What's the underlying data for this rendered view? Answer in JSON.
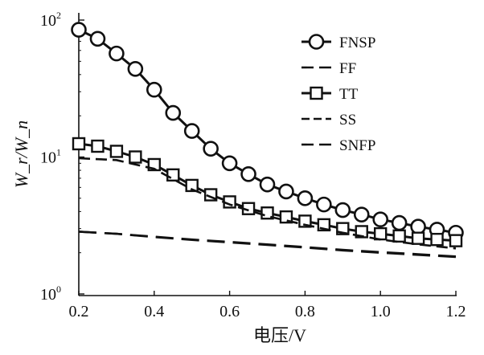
{
  "chart_data": {
    "type": "line",
    "title": "",
    "xlabel": "电压/V",
    "ylabel": "W_r/W_n",
    "x_ticks": [
      "0.2",
      "0.4",
      "0.6",
      "0.8",
      "1.0",
      "1.2"
    ],
    "y_ticks": [
      {
        "base": "10",
        "exp": "0"
      },
      {
        "base": "10",
        "exp": "1"
      },
      {
        "base": "10",
        "exp": "2"
      }
    ],
    "xlim": [
      0.18,
      1.2
    ],
    "ylim": [
      1,
      100
    ],
    "y_scale": "log",
    "grid": false,
    "legend_position": "top-right",
    "series": [
      {
        "name": "FNSP",
        "marker": "circle",
        "dash": "solid",
        "x": [
          0.2,
          0.25,
          0.3,
          0.35,
          0.4,
          0.45,
          0.5,
          0.55,
          0.6,
          0.65,
          0.7,
          0.75,
          0.8,
          0.85,
          0.9,
          0.95,
          1.0,
          1.05,
          1.1,
          1.15,
          1.2
        ],
        "y": [
          85,
          73,
          57,
          44,
          31,
          21,
          15.5,
          11.5,
          9.0,
          7.5,
          6.3,
          5.6,
          5.0,
          4.5,
          4.1,
          3.8,
          3.5,
          3.3,
          3.1,
          2.95,
          2.8
        ]
      },
      {
        "name": "FF",
        "marker": "none",
        "dash": "long-dash",
        "x": [
          0.2,
          0.3,
          0.4,
          0.5,
          0.6,
          0.7,
          0.8,
          0.9,
          1.0,
          1.1,
          1.2
        ],
        "y": [
          2.85,
          2.75,
          2.62,
          2.5,
          2.4,
          2.3,
          2.2,
          2.1,
          2.02,
          1.95,
          1.88
        ]
      },
      {
        "name": "TT",
        "marker": "square",
        "dash": "solid",
        "x": [
          0.2,
          0.25,
          0.3,
          0.35,
          0.4,
          0.45,
          0.5,
          0.55,
          0.6,
          0.65,
          0.7,
          0.75,
          0.8,
          0.85,
          0.9,
          0.95,
          1.0,
          1.05,
          1.1,
          1.15,
          1.2
        ],
        "y": [
          12.5,
          12.0,
          11.0,
          10.0,
          8.8,
          7.4,
          6.2,
          5.3,
          4.7,
          4.2,
          3.9,
          3.65,
          3.4,
          3.2,
          3.0,
          2.85,
          2.75,
          2.65,
          2.55,
          2.5,
          2.45
        ]
      },
      {
        "name": "SS",
        "marker": "none",
        "dash": "dash",
        "x": [
          0.2,
          0.3,
          0.4,
          0.5,
          0.6,
          0.7,
          0.8,
          0.9,
          1.0,
          1.1,
          1.2
        ],
        "y": [
          9.8,
          9.5,
          8.2,
          5.8,
          4.5,
          3.7,
          3.2,
          2.8,
          2.5,
          2.3,
          2.15
        ]
      },
      {
        "name": "SNFP",
        "marker": "none",
        "dash": "long-dash",
        "x": [
          0.2,
          0.3,
          0.4,
          0.5,
          0.6,
          0.7,
          0.8,
          0.9,
          1.0,
          1.1,
          1.2
        ],
        "y": [
          2.85,
          2.75,
          2.6,
          2.48,
          2.38,
          2.28,
          2.18,
          2.08,
          2.0,
          1.93,
          1.86
        ]
      }
    ]
  }
}
